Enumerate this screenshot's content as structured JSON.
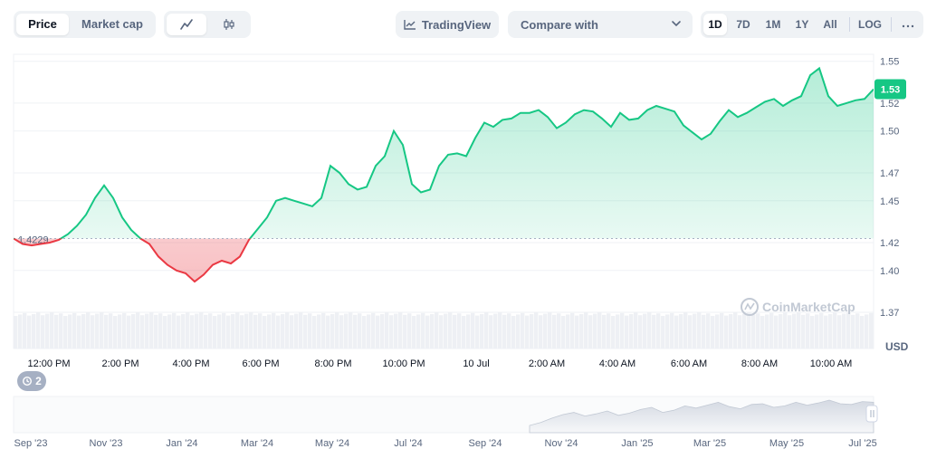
{
  "toolbar": {
    "price_tab": "Price",
    "market_cap_tab": "Market cap",
    "line_icon": "line-chart-icon",
    "candle_icon": "candlestick-icon",
    "tradingview_label": "TradingView",
    "compare_label": "Compare with",
    "ranges": [
      "1D",
      "7D",
      "1M",
      "1Y",
      "All"
    ],
    "active_range": "1D",
    "log_label": "LOG",
    "more_icon": "more-horizontal-icon"
  },
  "current_price_label": "1.53",
  "baseline_label": "1.4229",
  "watermark": "CoinMarketCap",
  "history_badge": "2",
  "colors": {
    "up": "#16c784",
    "down": "#ea3943",
    "price_tag": "#16c784"
  },
  "chart_data": {
    "type": "line",
    "x": [
      "11:30 AM",
      "11:45 AM",
      "12:00 PM",
      "12:15 PM",
      "12:30 PM",
      "12:45 PM",
      "1:00 PM",
      "1:15 PM",
      "1:30 PM",
      "1:45 PM",
      "2:00 PM",
      "2:15 PM",
      "2:30 PM",
      "2:45 PM",
      "3:00 PM",
      "3:15 PM",
      "3:30 PM",
      "3:45 PM",
      "4:00 PM",
      "4:15 PM",
      "4:30 PM",
      "4:45 PM",
      "5:00 PM",
      "5:15 PM",
      "5:30 PM",
      "5:45 PM",
      "6:00 PM",
      "6:15 PM",
      "6:30 PM",
      "6:45 PM",
      "7:00 PM",
      "7:15 PM",
      "7:30 PM",
      "7:45 PM",
      "8:00 PM",
      "8:15 PM",
      "8:30 PM",
      "8:45 PM",
      "9:00 PM",
      "9:15 PM",
      "9:30 PM",
      "9:45 PM",
      "10:00 PM",
      "10:15 PM",
      "10:30 PM",
      "10:45 PM",
      "11:00 PM",
      "11:15 PM",
      "11:30 PM",
      "11:45 PM",
      "12:00 AM",
      "12:15 AM",
      "12:30 AM",
      "12:45 AM",
      "1:00 AM",
      "1:15 AM",
      "1:30 AM",
      "1:45 AM",
      "2:00 AM",
      "2:15 AM",
      "2:30 AM",
      "2:45 AM",
      "3:00 AM",
      "3:15 AM",
      "3:30 AM",
      "3:45 AM",
      "4:00 AM",
      "4:15 AM",
      "4:30 AM",
      "4:45 AM",
      "5:00 AM",
      "5:15 AM",
      "5:30 AM",
      "5:45 AM",
      "6:00 AM",
      "6:15 AM",
      "6:30 AM",
      "6:45 AM",
      "7:00 AM",
      "7:15 AM",
      "7:30 AM",
      "7:45 AM",
      "8:00 AM",
      "8:15 AM",
      "8:30 AM",
      "8:45 AM",
      "9:00 AM",
      "9:15 AM",
      "9:30 AM",
      "9:45 AM",
      "10:00 AM",
      "10:15 AM",
      "10:30 AM",
      "10:45 AM",
      "11:00 AM",
      "11:15 AM"
    ],
    "values": [
      1.4229,
      1.419,
      1.418,
      1.419,
      1.42,
      1.422,
      1.426,
      1.432,
      1.44,
      1.452,
      1.461,
      1.452,
      1.438,
      1.429,
      1.423,
      1.419,
      1.41,
      1.404,
      1.4,
      1.398,
      1.392,
      1.397,
      1.404,
      1.407,
      1.405,
      1.41,
      1.422,
      1.43,
      1.438,
      1.45,
      1.452,
      1.45,
      1.448,
      1.446,
      1.452,
      1.475,
      1.47,
      1.462,
      1.458,
      1.46,
      1.475,
      1.482,
      1.5,
      1.49,
      1.462,
      1.456,
      1.458,
      1.475,
      1.483,
      1.484,
      1.482,
      1.495,
      1.506,
      1.503,
      1.508,
      1.509,
      1.513,
      1.513,
      1.515,
      1.51,
      1.502,
      1.506,
      1.512,
      1.515,
      1.514,
      1.509,
      1.503,
      1.513,
      1.508,
      1.509,
      1.515,
      1.518,
      1.516,
      1.514,
      1.504,
      1.499,
      1.494,
      1.498,
      1.507,
      1.515,
      1.51,
      1.513,
      1.517,
      1.521,
      1.523,
      1.518,
      1.522,
      1.525,
      1.54,
      1.545,
      1.525,
      1.518,
      1.52,
      1.522,
      1.523,
      1.53
    ],
    "baseline": 1.4229,
    "x_ticks": [
      "12:00 PM",
      "2:00 PM",
      "4:00 PM",
      "6:00 PM",
      "8:00 PM",
      "10:00 PM",
      "10 Jul",
      "2:00 AM",
      "4:00 AM",
      "6:00 AM",
      "8:00 AM",
      "10:00 AM"
    ],
    "y_ticks": [
      "1.55",
      "1.52",
      "1.50",
      "1.47",
      "1.45",
      "1.42",
      "1.40",
      "1.37"
    ],
    "ylim": [
      1.37,
      1.555
    ],
    "unit_label": "USD",
    "grid": true,
    "navigator": {
      "x_ticks": [
        "Sep '23",
        "Nov '23",
        "Jan '24",
        "Mar '24",
        "May '24",
        "Jul '24",
        "Sep '24",
        "Nov '24",
        "Jan '25",
        "Mar '25",
        "May '25",
        "Jul '25"
      ],
      "values": [
        1.2,
        1.24,
        1.3,
        1.35,
        1.38,
        1.33,
        1.36,
        1.4,
        1.34,
        1.37,
        1.42,
        1.45,
        1.38,
        1.41,
        1.47,
        1.44,
        1.48,
        1.52,
        1.46,
        1.43,
        1.49,
        1.5,
        1.45,
        1.47,
        1.52,
        1.48,
        1.51,
        1.55,
        1.5,
        1.49,
        1.53,
        1.52
      ]
    }
  }
}
